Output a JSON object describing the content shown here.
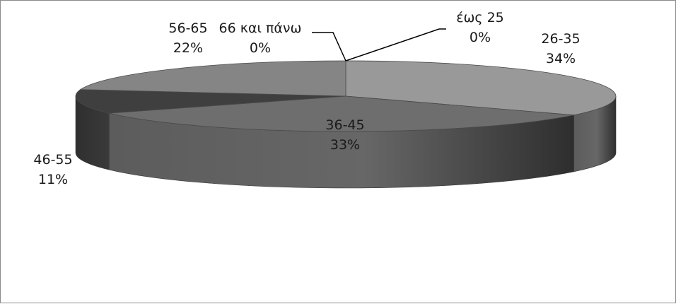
{
  "chart_data": {
    "type": "pie",
    "title": "",
    "categories": [
      "έως 25",
      "26-35",
      "36-45",
      "46-55",
      "56-65",
      "66 και πάνω"
    ],
    "values": [
      0,
      34,
      33,
      11,
      22,
      0
    ],
    "labels": [
      "0%",
      "34%",
      "33%",
      "11%",
      "22%",
      "0%"
    ],
    "colors": [
      "#8c8c8c",
      "#999999",
      "#6e6e6e",
      "#3f3f3f",
      "#858585",
      "#7a7a7a"
    ],
    "legend": "none"
  }
}
